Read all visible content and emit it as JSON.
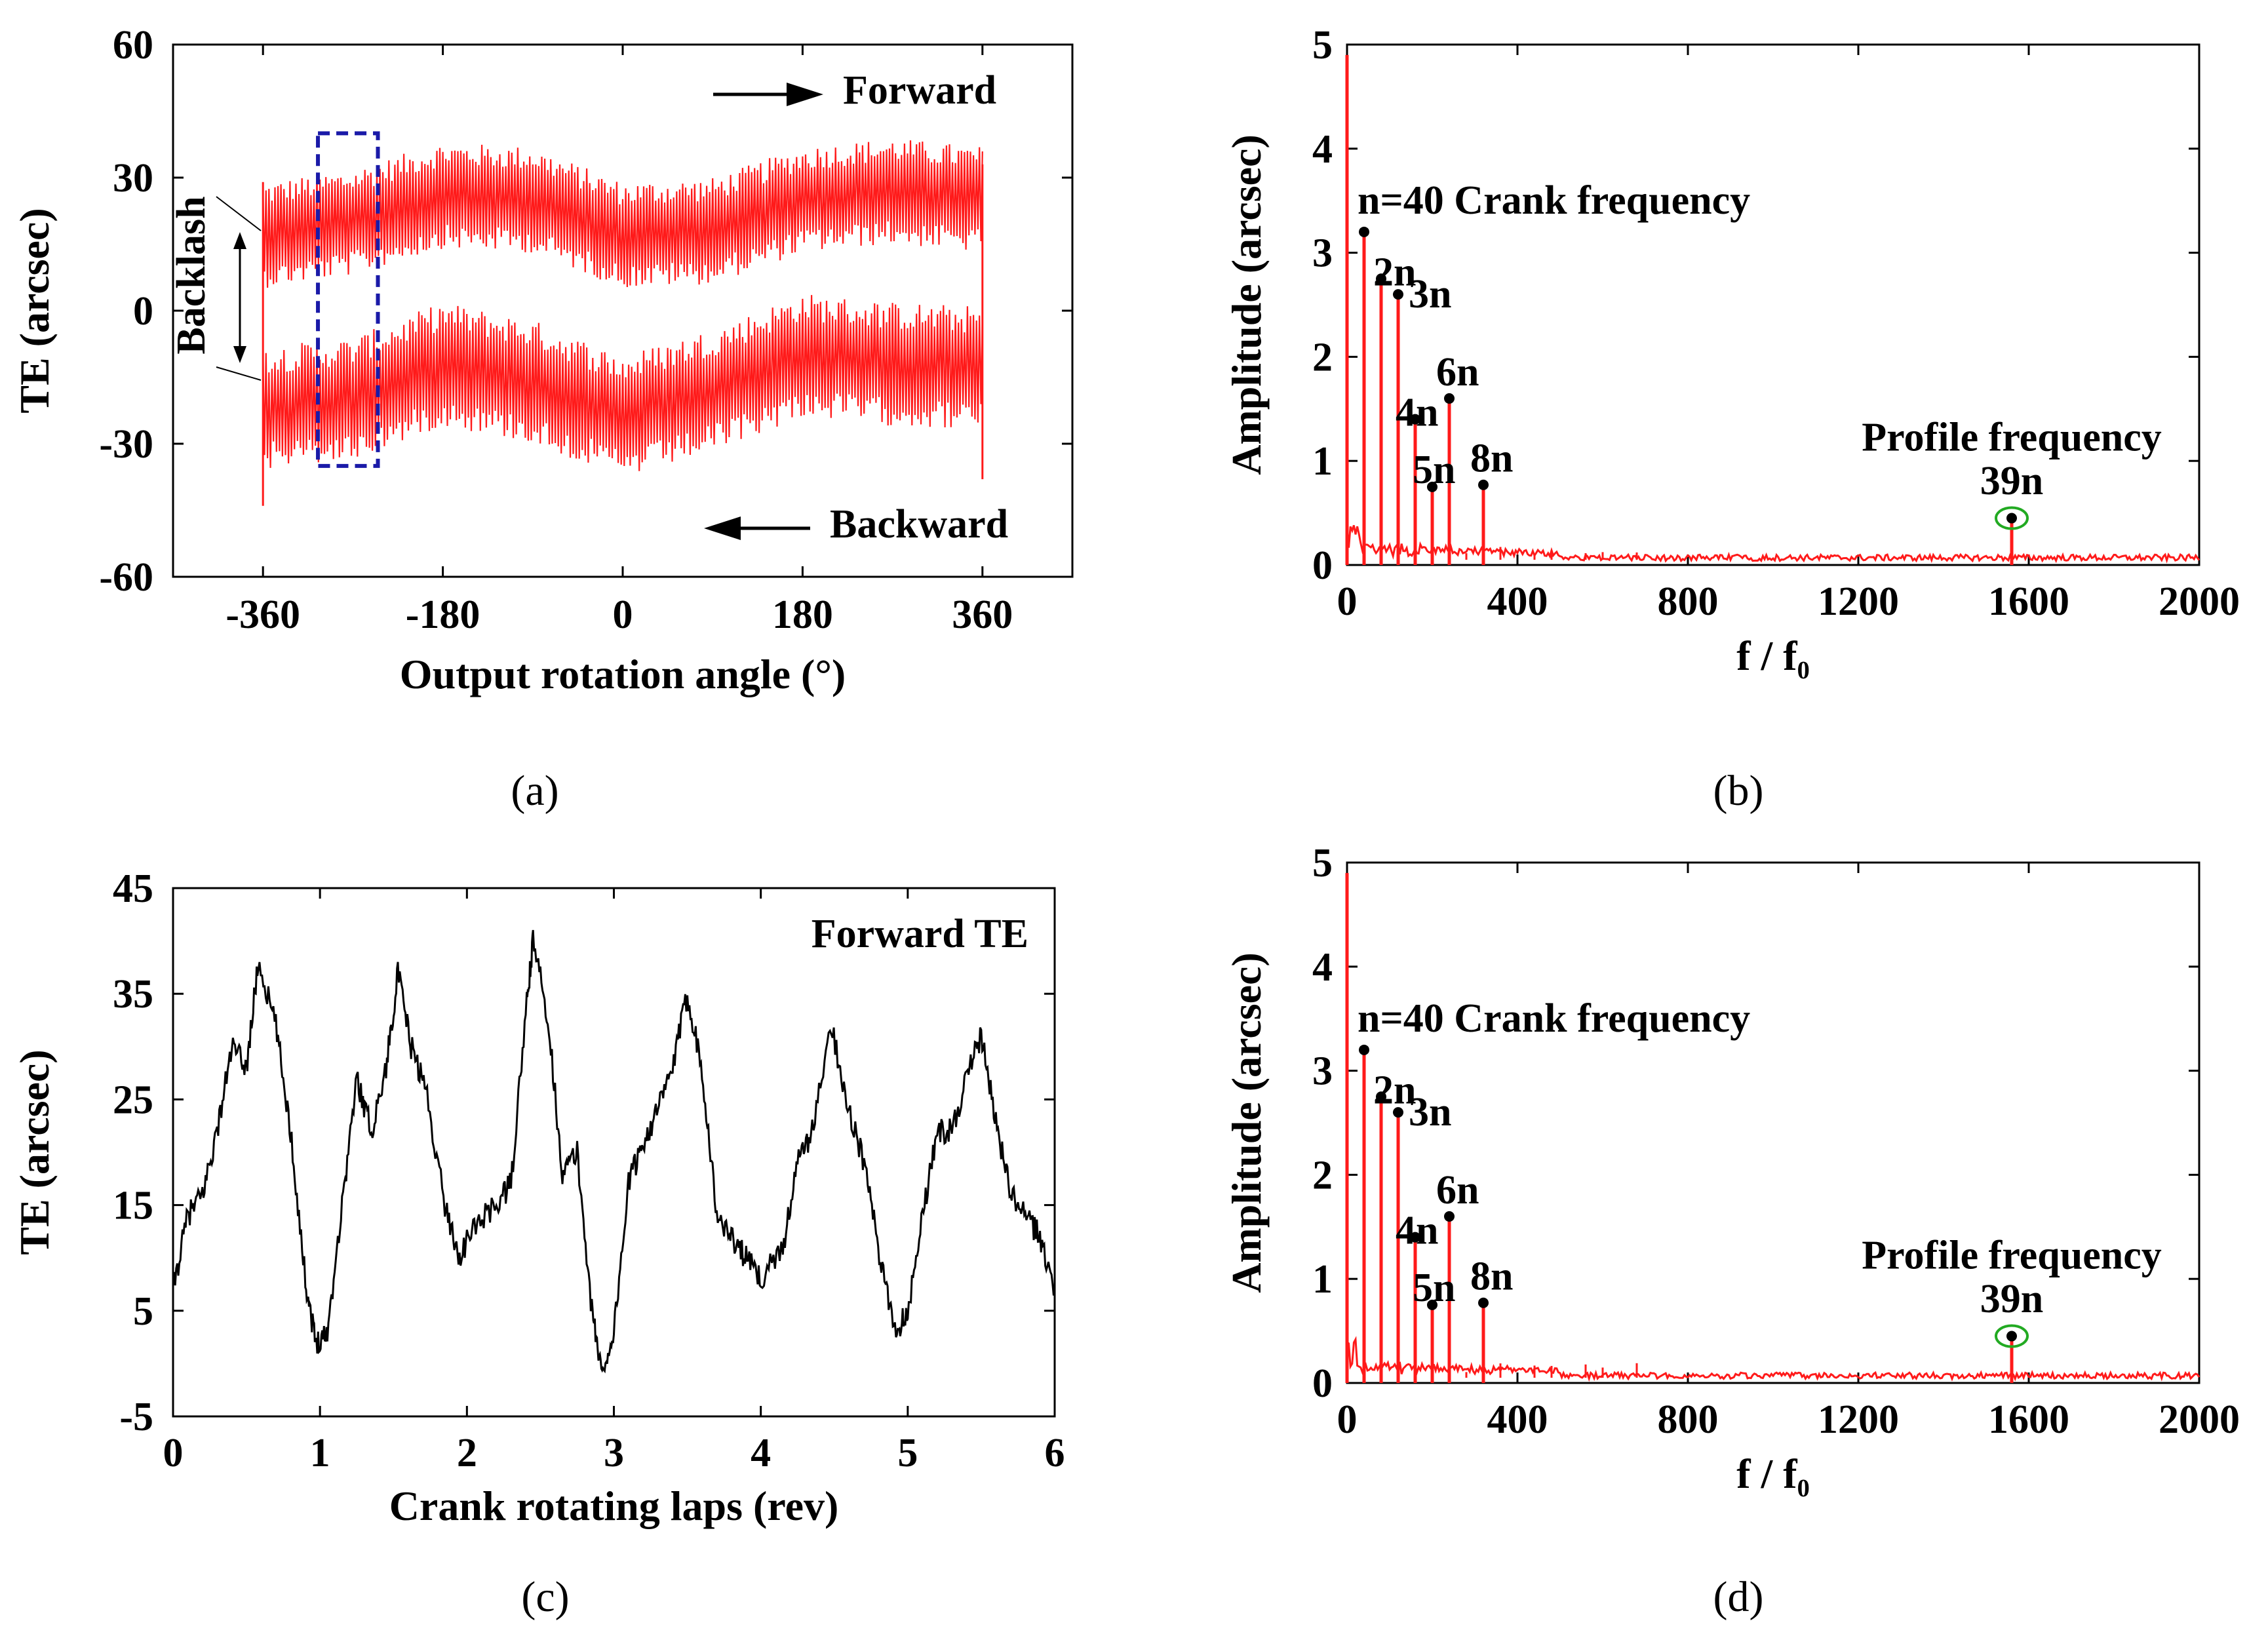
{
  "captions": {
    "a": "(a)",
    "b": "(b)",
    "c": "(c)",
    "d": "(d)"
  },
  "colors": {
    "red_trace": "#ff1a1a",
    "black_trace": "#000000",
    "dash_box": "#1a1aa8",
    "circle": "#22aa22"
  },
  "chart_data": [
    {
      "id": "a",
      "type": "line",
      "title": "",
      "xlabel": "Output rotation angle (°)",
      "ylabel": "TE (arcsec)",
      "xlim": [
        -450,
        450
      ],
      "ylim": [
        -60,
        60
      ],
      "xticks": [
        -360,
        -180,
        0,
        180,
        360
      ],
      "yticks": [
        -60,
        -30,
        0,
        30,
        60
      ],
      "xtick_labels": [
        "-360",
        "-180",
        "0",
        "180",
        "360"
      ],
      "ytick_labels": [
        "-60",
        "-30",
        "0",
        "30",
        "60"
      ],
      "annotations": {
        "forward": "Forward",
        "backward": "Backward",
        "backlash": "Backlash"
      },
      "highlight_box": {
        "x_range": [
          -305,
          -245
        ],
        "y_range": [
          -35,
          40
        ]
      },
      "series": [
        {
          "name": "Forward",
          "x_range": [
            -360,
            360
          ],
          "mean_profile": [
            [
              -360,
              17
            ],
            [
              -270,
              20
            ],
            [
              -180,
              26
            ],
            [
              -90,
              25
            ],
            [
              0,
              17
            ],
            [
              90,
              18
            ],
            [
              180,
              25
            ],
            [
              270,
              27
            ],
            [
              360,
              25
            ]
          ],
          "ripple_amplitude": 12,
          "ripple_cycles": 240
        },
        {
          "name": "Backward",
          "x_range": [
            -360,
            360
          ],
          "mean_profile": [
            [
              -360,
              -22
            ],
            [
              -270,
              -20
            ],
            [
              -180,
              -12
            ],
            [
              -90,
              -16
            ],
            [
              0,
              -24
            ],
            [
              90,
              -18
            ],
            [
              180,
              -10
            ],
            [
              270,
              -12
            ],
            [
              360,
              -13
            ]
          ],
          "ripple_amplitude": 14,
          "ripple_cycles": 240
        }
      ]
    },
    {
      "id": "b",
      "type": "line",
      "title": "",
      "xlabel": "f / f₀",
      "ylabel": "Amplitude (arcsec)",
      "xlim": [
        0,
        2000
      ],
      "ylim": [
        0,
        5
      ],
      "xticks": [
        0,
        400,
        800,
        1200,
        1600,
        2000
      ],
      "yticks": [
        0,
        1,
        2,
        3,
        4,
        5
      ],
      "xtick_labels": [
        "0",
        "400",
        "800",
        "1200",
        "1600",
        "2000"
      ],
      "ytick_labels": [
        "0",
        "1",
        "2",
        "3",
        "4",
        "5"
      ],
      "annotations": {
        "crank": "n=40 Crank frequency",
        "profile": "Profile frequency",
        "profile_harmonic": "39n"
      },
      "peaks": [
        {
          "label": "",
          "x": 0,
          "y": 4.9,
          "marker": false
        },
        {
          "label": "n",
          "x": 40,
          "y": 3.2,
          "marker": true
        },
        {
          "label": "2n",
          "x": 80,
          "y": 2.75,
          "marker": true
        },
        {
          "label": "3n",
          "x": 120,
          "y": 2.6,
          "marker": true
        },
        {
          "label": "4n",
          "x": 160,
          "y": 1.4,
          "marker": true
        },
        {
          "label": "5n",
          "x": 200,
          "y": 0.75,
          "marker": true
        },
        {
          "label": "6n",
          "x": 240,
          "y": 1.6,
          "marker": true
        },
        {
          "label": "8n",
          "x": 320,
          "y": 0.77,
          "marker": true
        },
        {
          "label": "39n",
          "x": 1560,
          "y": 0.45,
          "marker": true
        }
      ]
    },
    {
      "id": "c",
      "type": "line",
      "title": "",
      "xlabel": "Crank rotating laps (rev)",
      "ylabel": "TE (arcsec)",
      "xlim": [
        0,
        6
      ],
      "ylim": [
        -5,
        45
      ],
      "xticks": [
        0,
        1,
        2,
        3,
        4,
        5,
        6
      ],
      "yticks": [
        -5,
        5,
        15,
        25,
        35,
        45
      ],
      "xtick_labels": [
        "0",
        "1",
        "2",
        "3",
        "4",
        "5",
        "6"
      ],
      "ytick_labels": [
        "-5",
        "5",
        "15",
        "25",
        "35",
        "45"
      ],
      "legend": "Forward TE",
      "series": [
        {
          "name": "Forward TE",
          "points": [
            [
              0,
              7
            ],
            [
              0.1,
              14
            ],
            [
              0.2,
              16
            ],
            [
              0.3,
              22
            ],
            [
              0.4,
              30
            ],
            [
              0.5,
              28
            ],
            [
              0.58,
              38
            ],
            [
              0.7,
              32
            ],
            [
              0.8,
              22
            ],
            [
              0.9,
              8
            ],
            [
              0.97,
              2
            ],
            [
              1.05,
              3
            ],
            [
              1.15,
              15
            ],
            [
              1.25,
              27
            ],
            [
              1.35,
              22
            ],
            [
              1.45,
              28
            ],
            [
              1.53,
              37
            ],
            [
              1.62,
              30
            ],
            [
              1.72,
              26
            ],
            [
              1.85,
              15
            ],
            [
              1.95,
              10
            ],
            [
              2.05,
              13
            ],
            [
              2.2,
              15
            ],
            [
              2.3,
              17
            ],
            [
              2.4,
              33
            ],
            [
              2.45,
              40
            ],
            [
              2.55,
              33
            ],
            [
              2.65,
              18
            ],
            [
              2.75,
              20
            ],
            [
              2.85,
              5
            ],
            [
              2.92,
              -1
            ],
            [
              3.0,
              3
            ],
            [
              3.1,
              17
            ],
            [
              3.2,
              21
            ],
            [
              3.3,
              24
            ],
            [
              3.4,
              28
            ],
            [
              3.5,
              35
            ],
            [
              3.6,
              28
            ],
            [
              3.7,
              14
            ],
            [
              3.8,
              12
            ],
            [
              3.9,
              10
            ],
            [
              4.0,
              8
            ],
            [
              4.15,
              11
            ],
            [
              4.25,
              19
            ],
            [
              4.35,
              22
            ],
            [
              4.48,
              32
            ],
            [
              4.6,
              24
            ],
            [
              4.72,
              18
            ],
            [
              4.82,
              9
            ],
            [
              4.92,
              3
            ],
            [
              5.0,
              5
            ],
            [
              5.1,
              14
            ],
            [
              5.2,
              22
            ],
            [
              5.3,
              22
            ],
            [
              5.4,
              27
            ],
            [
              5.5,
              31
            ],
            [
              5.6,
              23
            ],
            [
              5.7,
              16
            ],
            [
              5.8,
              14
            ],
            [
              5.9,
              12
            ],
            [
              6.0,
              7
            ]
          ]
        }
      ]
    },
    {
      "id": "d",
      "type": "line",
      "title": "",
      "xlabel": "f / f₀",
      "ylabel": "Amplitude (arcsec)",
      "xlim": [
        0,
        2000
      ],
      "ylim": [
        0,
        5
      ],
      "xticks": [
        0,
        400,
        800,
        1200,
        1600,
        2000
      ],
      "yticks": [
        0,
        1,
        2,
        3,
        4,
        5
      ],
      "xtick_labels": [
        "0",
        "400",
        "800",
        "1200",
        "1600",
        "2000"
      ],
      "ytick_labels": [
        "0",
        "1",
        "2",
        "3",
        "4",
        "5"
      ],
      "annotations": {
        "crank": "n=40 Crank frequency",
        "profile": "Profile frequency",
        "profile_harmonic": "39n"
      },
      "peaks": [
        {
          "label": "",
          "x": 0,
          "y": 4.9,
          "marker": false
        },
        {
          "label": "n",
          "x": 40,
          "y": 3.2,
          "marker": true
        },
        {
          "label": "2n",
          "x": 80,
          "y": 2.75,
          "marker": true
        },
        {
          "label": "3n",
          "x": 120,
          "y": 2.6,
          "marker": true
        },
        {
          "label": "4n",
          "x": 160,
          "y": 1.4,
          "marker": true
        },
        {
          "label": "5n",
          "x": 200,
          "y": 0.75,
          "marker": true
        },
        {
          "label": "6n",
          "x": 240,
          "y": 1.6,
          "marker": true
        },
        {
          "label": "8n",
          "x": 320,
          "y": 0.77,
          "marker": true
        },
        {
          "label": "39n",
          "x": 1560,
          "y": 0.45,
          "marker": true
        }
      ]
    }
  ]
}
